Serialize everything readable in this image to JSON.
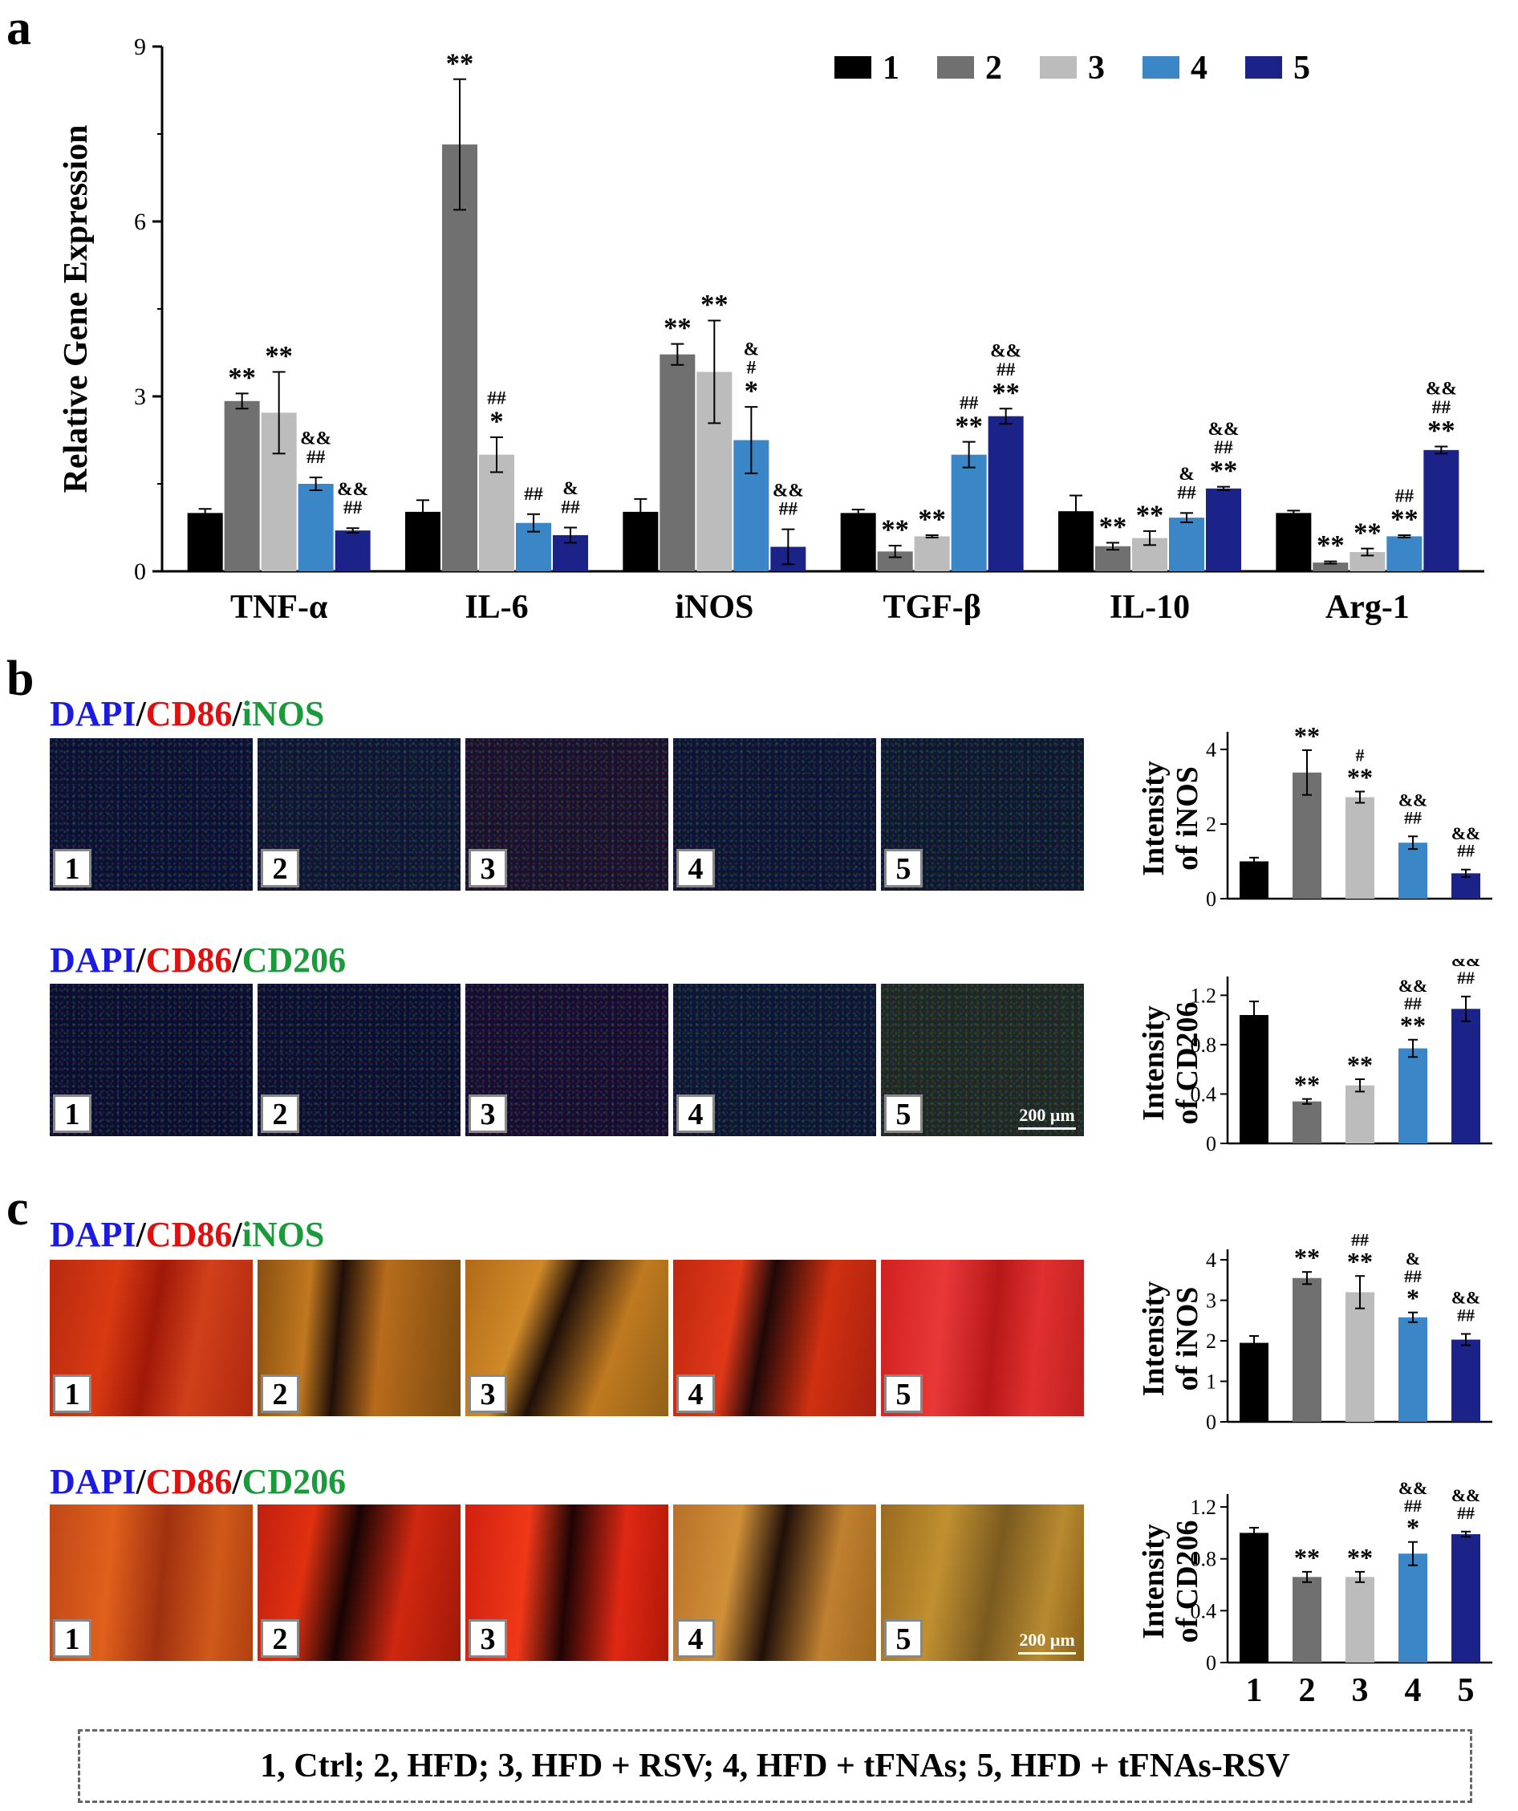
{
  "panels": {
    "a": "a",
    "b": "b",
    "c": "c"
  },
  "colors": {
    "group_1": "#000000",
    "group_2": "#707070",
    "group_3": "#bcbcbc",
    "group_4": "#3b86c6",
    "group_5": "#1c2388",
    "dapi": "#1a1ae0",
    "cd86": "#e01010",
    "marker": "#1a9a3a"
  },
  "stain_titles": {
    "b_top": {
      "dapi": "DAPI",
      "sep1": "/",
      "cd86": "CD86",
      "sep2": "/",
      "marker": "iNOS"
    },
    "b_bottom": {
      "dapi": "DAPI",
      "sep1": "/",
      "cd86": "CD86",
      "sep2": "/",
      "marker": "CD206"
    },
    "c_top": {
      "dapi": "DAPI",
      "sep1": "/",
      "cd86": "CD86",
      "sep2": "/",
      "marker": "iNOS"
    },
    "c_bottom": {
      "dapi": "DAPI",
      "sep1": "/",
      "cd86": "CD86",
      "sep2": "/",
      "marker": "CD206"
    }
  },
  "tile_labels": [
    "1",
    "2",
    "3",
    "4",
    "5"
  ],
  "scale_bar": "200 μm",
  "footer_legend": "1, Ctrl; 2, HFD; 3, HFD + RSV; 4, HFD + tFNAs; 5, HFD + tFNAs-RSV",
  "chart_data": [
    {
      "id": "a",
      "type": "bar",
      "ylabel": "Relative Gene Expression",
      "ylim": [
        0,
        9
      ],
      "yticks": [
        0,
        3,
        6,
        9
      ],
      "categories": [
        "TNF-α",
        "IL-6",
        "iNOS",
        "TGF-β",
        "IL-10",
        "Arg-1"
      ],
      "legend": {
        "position": "top-right",
        "entries": [
          "1",
          "2",
          "3",
          "4",
          "5"
        ]
      },
      "series": [
        {
          "name": "1",
          "values": [
            1.0,
            1.02,
            1.02,
            1.0,
            1.03,
            1.0
          ],
          "errors": [
            0.07,
            0.2,
            0.22,
            0.06,
            0.27,
            0.04
          ]
        },
        {
          "name": "2",
          "values": [
            2.92,
            7.32,
            3.72,
            0.34,
            0.43,
            0.15
          ],
          "errors": [
            0.13,
            1.12,
            0.18,
            0.1,
            0.06,
            0.02
          ]
        },
        {
          "name": "3",
          "values": [
            2.72,
            2.0,
            3.42,
            0.6,
            0.57,
            0.33
          ],
          "errors": [
            0.7,
            0.3,
            0.88,
            0.02,
            0.12,
            0.06
          ]
        },
        {
          "name": "4",
          "values": [
            1.5,
            0.83,
            2.25,
            2.0,
            0.92,
            0.6
          ],
          "errors": [
            0.11,
            0.15,
            0.57,
            0.22,
            0.08,
            0.02
          ]
        },
        {
          "name": "5",
          "values": [
            0.7,
            0.62,
            0.42,
            2.66,
            1.42,
            2.08
          ],
          "errors": [
            0.04,
            0.13,
            0.3,
            0.13,
            0.03,
            0.06
          ]
        }
      ],
      "significance": [
        [
          "",
          "**",
          "**",
          "&&\n##",
          "&&\n##"
        ],
        [
          "",
          "**",
          "##\n*",
          "##",
          "&\n##"
        ],
        [
          "",
          "**",
          "**",
          "&\n#\n*",
          "&&\n##"
        ],
        [
          "",
          "**",
          "**",
          "##\n**",
          "&&\n##\n**"
        ],
        [
          "",
          "**",
          "**",
          "&\n##",
          "&&\n##\n**"
        ],
        [
          "",
          "**",
          "**",
          "##\n**",
          "&&\n##\n**"
        ]
      ]
    },
    {
      "id": "b_inos",
      "type": "bar",
      "ylabel": "Intensity\nof iNOS",
      "ylim": [
        0,
        4.3
      ],
      "yticks": [
        0,
        2,
        4
      ],
      "categories": [
        "1",
        "2",
        "3",
        "4",
        "5"
      ],
      "values": [
        1.0,
        3.38,
        2.72,
        1.5,
        0.68
      ],
      "errors": [
        0.1,
        0.6,
        0.15,
        0.17,
        0.1
      ],
      "significance": [
        "",
        "**",
        "#\n**",
        "&&\n##",
        "&&\n##"
      ]
    },
    {
      "id": "b_cd206",
      "type": "bar",
      "ylabel": "Intensity\nof CD206",
      "ylim": [
        0,
        1.3
      ],
      "yticks": [
        0,
        0.4,
        0.8,
        1.2
      ],
      "categories": [
        "1",
        "2",
        "3",
        "4",
        "5"
      ],
      "values": [
        1.04,
        0.34,
        0.47,
        0.77,
        1.09
      ],
      "errors": [
        0.11,
        0.02,
        0.05,
        0.07,
        0.1
      ],
      "significance": [
        "",
        "**",
        "**",
        "&&\n##\n**",
        "&&\n##"
      ]
    },
    {
      "id": "c_inos",
      "type": "bar",
      "ylabel": "Intensity\nof iNOS",
      "ylim": [
        0,
        4.1
      ],
      "yticks": [
        0,
        1,
        2,
        3,
        4
      ],
      "categories": [
        "1",
        "2",
        "3",
        "4",
        "5"
      ],
      "values": [
        1.95,
        3.55,
        3.2,
        2.58,
        2.03
      ],
      "errors": [
        0.17,
        0.15,
        0.4,
        0.12,
        0.14
      ],
      "significance": [
        "",
        "**",
        "##\n**",
        "&\n##\n*",
        "&&\n##"
      ]
    },
    {
      "id": "c_cd206",
      "type": "bar",
      "ylabel": "Intensity\nof CD206",
      "ylim": [
        0,
        1.25
      ],
      "yticks": [
        0,
        0.4,
        0.8,
        1.2
      ],
      "categories": [
        "1",
        "2",
        "3",
        "4",
        "5"
      ],
      "values": [
        1.0,
        0.66,
        0.66,
        0.84,
        0.99
      ],
      "errors": [
        0.04,
        0.04,
        0.04,
        0.09,
        0.02
      ],
      "significance": [
        "",
        "**",
        "**",
        "&&\n##\n*",
        "&&\n##"
      ]
    }
  ]
}
